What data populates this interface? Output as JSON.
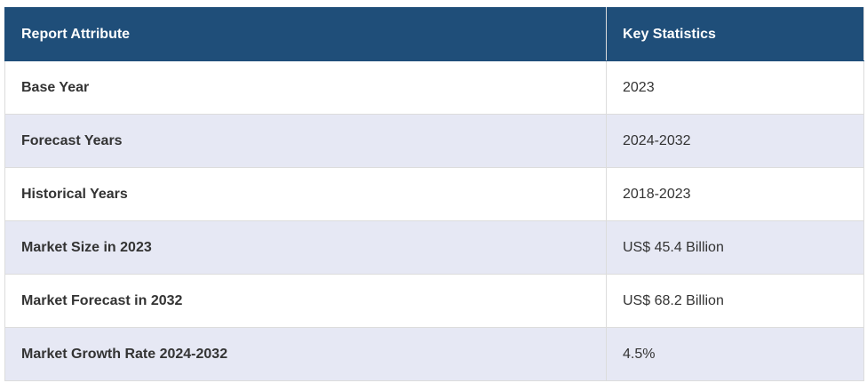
{
  "table": {
    "header": [
      "Report Attribute",
      "Key Statistics"
    ],
    "rows": [
      [
        "Base Year",
        "2023"
      ],
      [
        "Forecast Years",
        "2024-2032"
      ],
      [
        "Historical Years",
        "2018-2023"
      ],
      [
        "Market Size in 2023",
        "US$ 45.4 Billion"
      ],
      [
        "Market Forecast in 2032",
        "US$ 68.2 Billion"
      ],
      [
        "Market Growth Rate 2024-2032",
        "4.5%"
      ]
    ]
  }
}
